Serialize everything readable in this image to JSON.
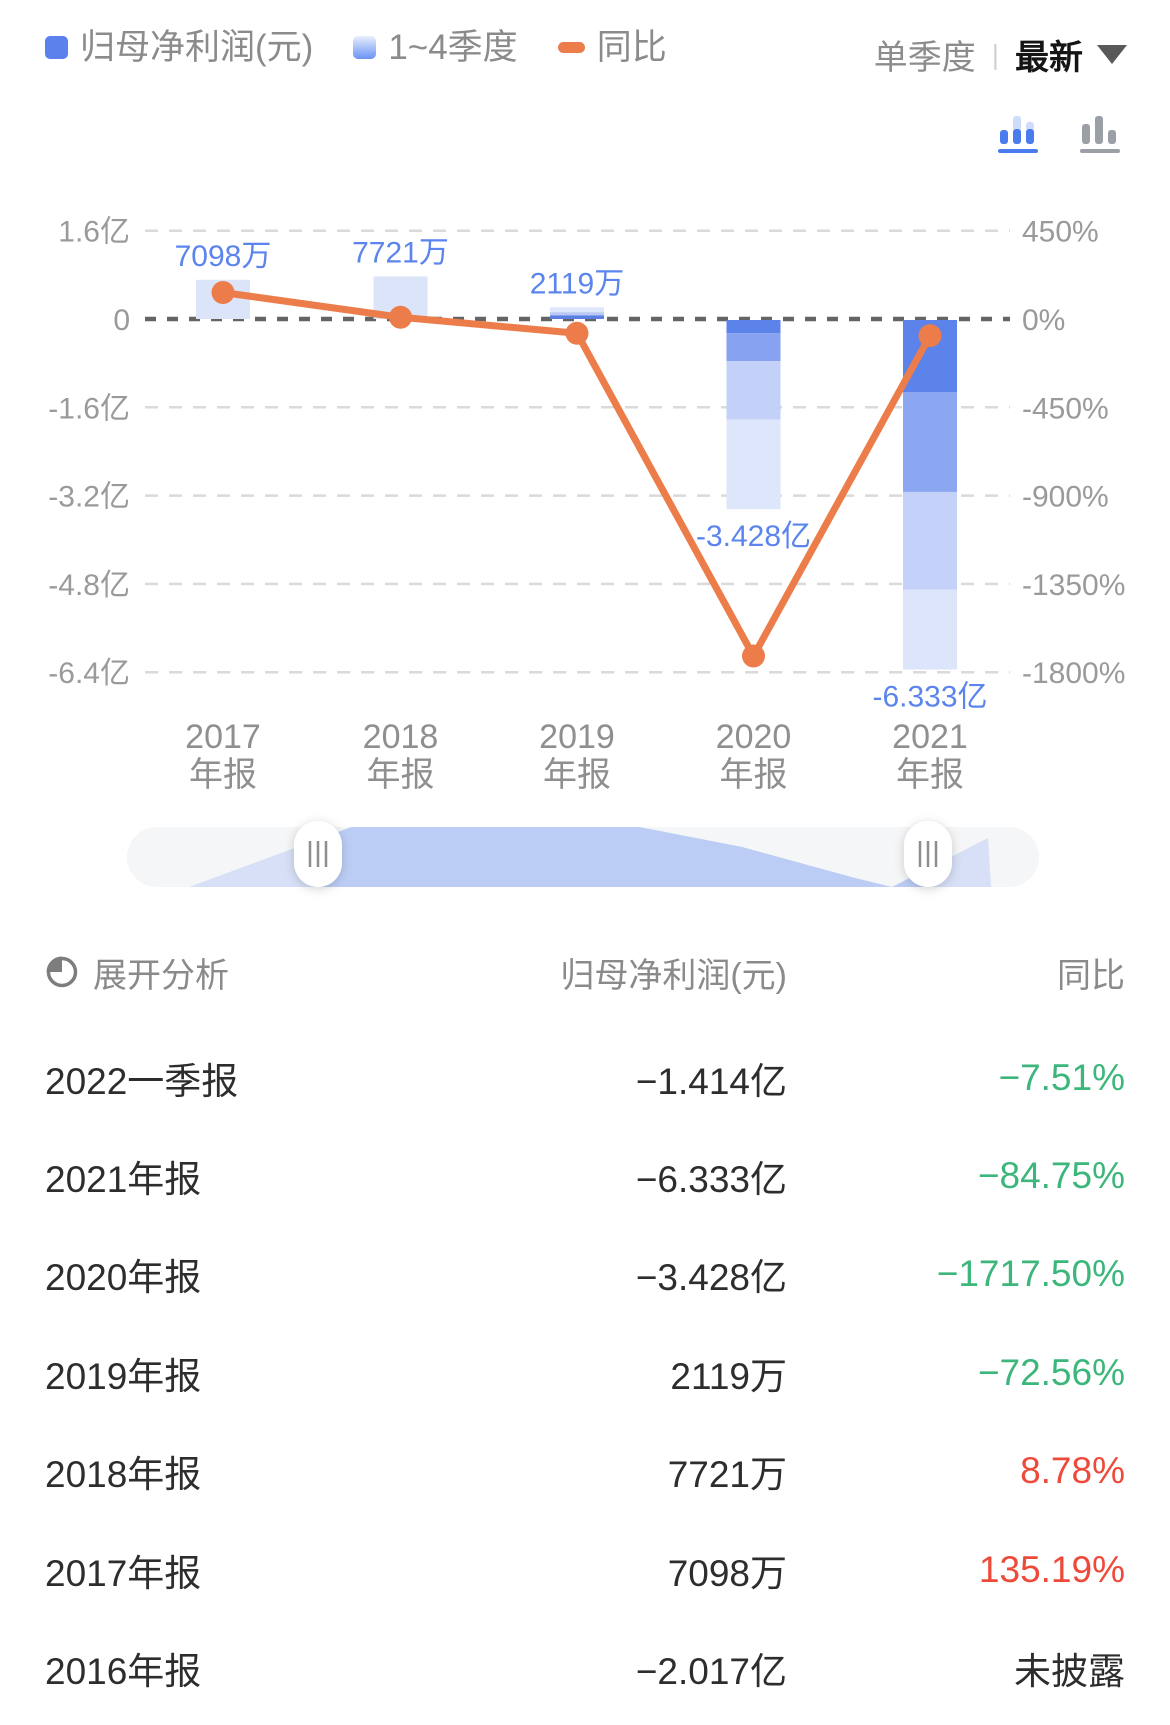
{
  "legend": {
    "items": [
      {
        "label": "归母净利润(元)",
        "swatch": "solid",
        "color": "#5b82ec"
      },
      {
        "label": "1~4季度",
        "swatch": "gradient",
        "color_top": "#e9effc",
        "color_bottom": "#6a93f4"
      },
      {
        "label": "同比",
        "swatch": "dash",
        "color": "#ec7d4a"
      }
    ]
  },
  "toolbar": {
    "period_label": "单季度",
    "divider": "|",
    "mode_label": "最新",
    "dropdown_icon": "caret-down"
  },
  "colors": {
    "up_red": "#ee4a3a",
    "down_green": "#3db67c",
    "plain": "#2d2d2d",
    "accent_blue": "#4a7cf0",
    "inactive_gray": "#9aa0a6"
  },
  "chart_data": {
    "type": "bar+line",
    "categories": [
      "2017年报",
      "2018年报",
      "2019年报",
      "2020年报",
      "2021年报"
    ],
    "series": [
      {
        "name": "归母净利润(元)",
        "type": "bar",
        "axis": "left",
        "unit": "亿",
        "values": [
          0.7098,
          0.7721,
          0.2119,
          -3.428,
          -6.333
        ],
        "labels": [
          "7098万",
          "7721万",
          "2119万",
          "-3.428亿",
          "-6.333亿"
        ]
      },
      {
        "name": "同比",
        "type": "line",
        "axis": "right",
        "unit": "%",
        "values": [
          135.19,
          8.78,
          -72.56,
          -1717.5,
          -84.75
        ],
        "color": "#ec7d4a"
      }
    ],
    "stack_segments": [
      [
        {
          "f": 1,
          "color": "#dbe4f9"
        }
      ],
      [
        {
          "f": 1,
          "color": "#dbe4f9"
        }
      ],
      [
        {
          "f": 0.42,
          "color": "#dde6fa"
        },
        {
          "f": 0.28,
          "color": "#b9c8f4"
        },
        {
          "f": 0.3,
          "color": "#5b7fe0"
        }
      ],
      [
        {
          "f": 0.069,
          "color": "#5b83ea"
        },
        {
          "f": 0.149,
          "color": "#86a2f1"
        },
        {
          "f": 0.309,
          "color": "#c3d0f8"
        },
        {
          "f": 0.473,
          "color": "#dee6fb"
        }
      ],
      [
        {
          "f": 0.206,
          "color": "#5b83ea"
        },
        {
          "f": 0.286,
          "color": "#8ba7f2"
        },
        {
          "f": 0.279,
          "color": "#c4d1f8"
        },
        {
          "f": 0.229,
          "color": "#dde5fb"
        }
      ]
    ],
    "left_axis": {
      "ticks": [
        {
          "label": "1.6亿",
          "value": 1.6
        },
        {
          "label": "0",
          "value": 0
        },
        {
          "label": "-1.6亿",
          "value": -1.6
        },
        {
          "label": "-3.2亿",
          "value": -3.2
        },
        {
          "label": "-4.8亿",
          "value": -4.8
        },
        {
          "label": "-6.4亿",
          "value": -6.4
        }
      ],
      "max": 1.6,
      "min": -6.4
    },
    "right_axis": {
      "ticks": [
        {
          "label": "450%",
          "value": 450
        },
        {
          "label": "0%",
          "value": 0
        },
        {
          "label": "-450%",
          "value": -450
        },
        {
          "label": "-900%",
          "value": -900
        },
        {
          "label": "-1350%",
          "value": -1350
        },
        {
          "label": "-1800%",
          "value": -1800
        }
      ],
      "max": 450,
      "min": -1800
    },
    "grid": true,
    "bar_label_color": "#5b84ec",
    "axis_text_color": "#9a9a9a",
    "zero_line_color": "#646464",
    "grid_line_color": "#dadada",
    "xlabel_color": "#8f8f8f"
  },
  "table": {
    "header": {
      "expand_label": "展开分析",
      "value_col": "归母净利润(元)",
      "yoy_col": "同比"
    },
    "rows": [
      {
        "period": "2022一季报",
        "value": "−1.414亿",
        "yoy": "−7.51%",
        "yoy_color": "down_green"
      },
      {
        "period": "2021年报",
        "value": "−6.333亿",
        "yoy": "−84.75%",
        "yoy_color": "down_green"
      },
      {
        "period": "2020年报",
        "value": "−3.428亿",
        "yoy": "−1717.50%",
        "yoy_color": "down_green"
      },
      {
        "period": "2019年报",
        "value": "2119万",
        "yoy": "−72.56%",
        "yoy_color": "down_green"
      },
      {
        "period": "2018年报",
        "value": "7721万",
        "yoy": "8.78%",
        "yoy_color": "up_red"
      },
      {
        "period": "2017年报",
        "value": "7098万",
        "yoy": "135.19%",
        "yoy_color": "up_red"
      },
      {
        "period": "2016年报",
        "value": "−2.017亿",
        "yoy": "未披露",
        "yoy_color": "plain"
      }
    ]
  }
}
